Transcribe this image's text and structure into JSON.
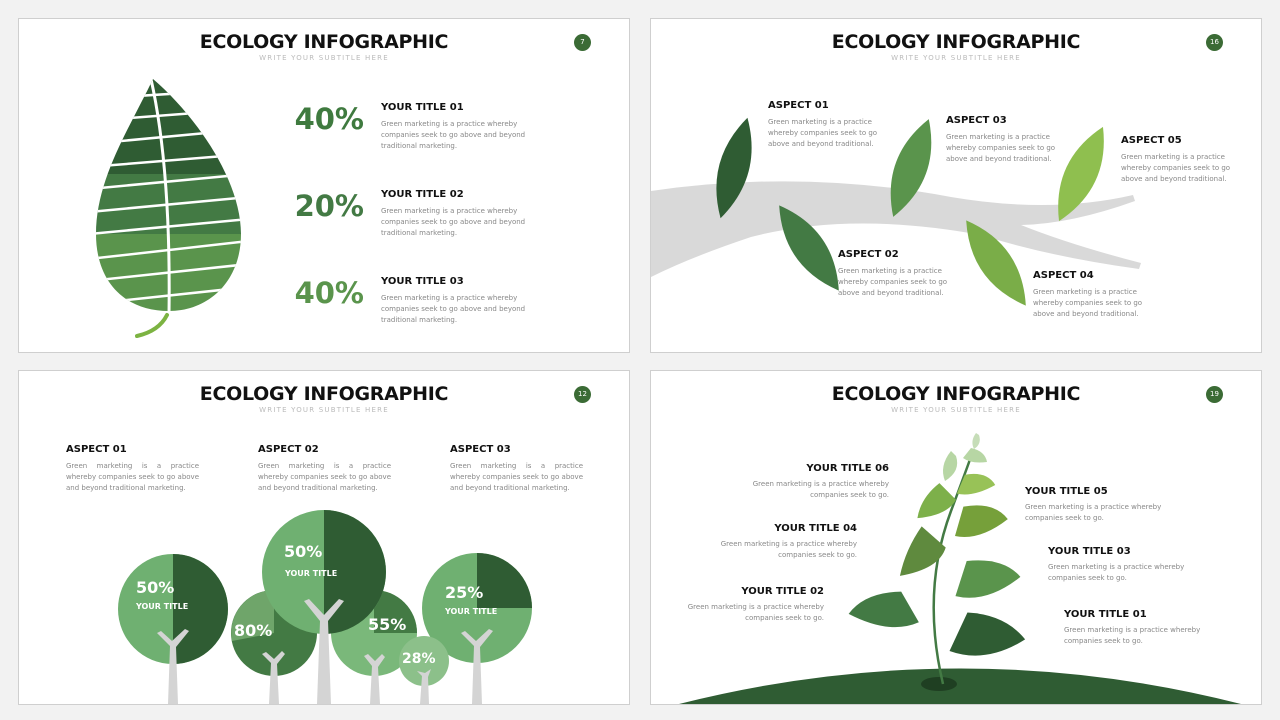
{
  "slides": [
    {
      "title": "ECOLOGY INFOGRAPHIC",
      "subtitle": "WRITE YOUR SUBTITLE HERE",
      "page": "7",
      "items": [
        {
          "percent": "40%",
          "title": "YOUR TITLE 01",
          "text": "Green marketing is a practice whereby companies seek to go above and beyond traditional marketing."
        },
        {
          "percent": "20%",
          "title": "YOUR TITLE 02",
          "text": "Green marketing is a practice whereby companies seek to go above and beyond traditional marketing."
        },
        {
          "percent": "40%",
          "title": "YOUR TITLE 03",
          "text": "Green marketing is a practice whereby companies seek to go above and beyond traditional marketing."
        }
      ]
    },
    {
      "title": "ECOLOGY INFOGRAPHIC",
      "subtitle": "WRITE YOUR SUBTITLE HERE",
      "page": "16",
      "items": [
        {
          "title": "ASPECT 01",
          "text": "Green marketing is a practice whereby companies seek to go above and beyond traditional."
        },
        {
          "title": "ASPECT 02",
          "text": "Green marketing is a practice whereby companies seek to go above and beyond traditional."
        },
        {
          "title": "ASPECT 03",
          "text": "Green marketing is a practice whereby companies seek to go above and beyond traditional."
        },
        {
          "title": "ASPECT 04",
          "text": "Green marketing is a practice whereby companies seek to go above and beyond traditional."
        },
        {
          "title": "ASPECT 05",
          "text": "Green marketing is a practice whereby companies seek to go above and beyond traditional."
        }
      ]
    },
    {
      "title": "ECOLOGY INFOGRAPHIC",
      "subtitle": "WRITE YOUR SUBTITLE HERE",
      "page": "12",
      "items": [
        {
          "title": "ASPECT 01",
          "text": "Green marketing is a practice whereby companies seek to go above and beyond traditional marketing."
        },
        {
          "title": "ASPECT 02",
          "text": "Green marketing is a practice whereby companies seek to go above and beyond traditional marketing."
        },
        {
          "title": "ASPECT 03",
          "text": "Green marketing is a practice whereby companies seek to go above and beyond traditional marketing."
        }
      ],
      "trees": [
        {
          "percent": "50%",
          "label": "YOUR TITLE"
        },
        {
          "percent": "80%"
        },
        {
          "percent": "50%",
          "label": "YOUR TITLE"
        },
        {
          "percent": "55%"
        },
        {
          "percent": "28%"
        },
        {
          "percent": "25%",
          "label": "YOUR TITLE"
        }
      ]
    },
    {
      "title": "ECOLOGY INFOGRAPHIC",
      "subtitle": "WRITE YOUR SUBTITLE HERE",
      "page": "19",
      "items": [
        {
          "title": "YOUR TITLE 01",
          "text": "Green marketing is a practice whereby companies seek to go."
        },
        {
          "title": "YOUR TITLE 02",
          "text": "Green marketing is a practice whereby companies seek to go."
        },
        {
          "title": "YOUR TITLE 03",
          "text": "Green marketing is a practice whereby companies seek to go."
        },
        {
          "title": "YOUR TITLE 04",
          "text": "Green marketing is a practice whereby companies seek to go."
        },
        {
          "title": "YOUR TITLE 05",
          "text": "Green marketing is a practice whereby companies seek to go."
        },
        {
          "title": "YOUR TITLE 06",
          "text": "Green marketing is a practice whereby companies seek to go."
        }
      ]
    }
  ],
  "colors": {
    "dark": "#2f5c33",
    "mid": "#437a44",
    "green": "#5a944c",
    "light": "#6fb071",
    "lime": "#8fbf4f",
    "gray": "#d9d9d9"
  }
}
